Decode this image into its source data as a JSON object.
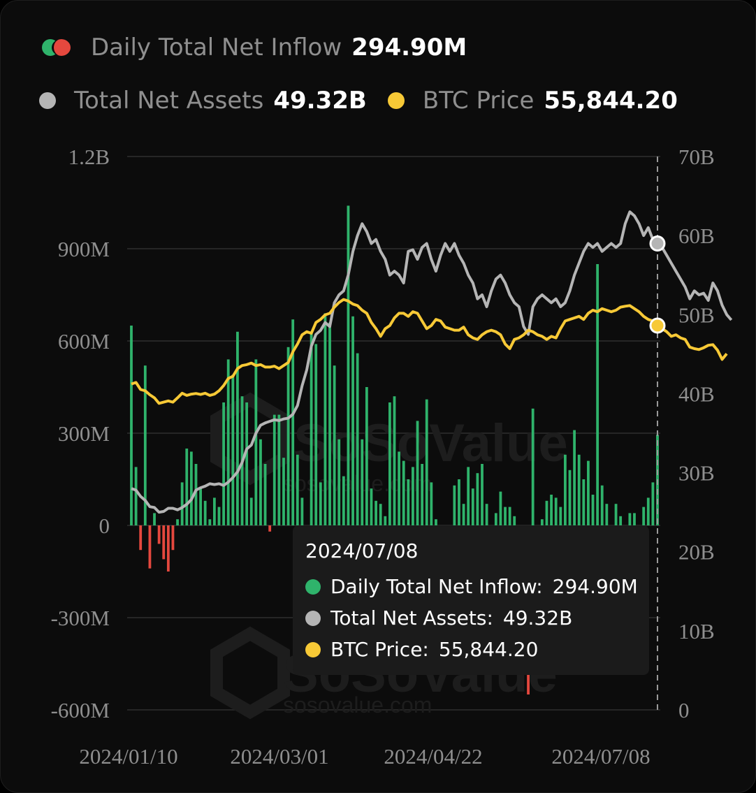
{
  "legend": {
    "inflow_label": "Daily Total Net Inflow",
    "inflow_value": "294.90M",
    "assets_label": "Total Net Assets",
    "assets_value": "49.32B",
    "btc_label": "BTC Price",
    "btc_value": "55,844.20"
  },
  "tooltip": {
    "date": "2024/07/08",
    "inflow_label": "Daily Total Net Inflow:",
    "inflow_value": "294.90M",
    "assets_label": "Total Net Assets:",
    "assets_value": "49.32B",
    "btc_label": "BTC Price:",
    "btc_value": "55,844.20"
  },
  "watermark": {
    "brand": "SoSoValue",
    "url": "sosovalue.com"
  },
  "colors": {
    "inflow_positive": "#2fb36b",
    "inflow_negative": "#e5483e",
    "net_assets": "#b5b5b5",
    "btc_price": "#f7c936",
    "grid": "#262626"
  },
  "chart_data": {
    "type": "bar",
    "title": "",
    "xlabel": "",
    "ylabel": "",
    "x_tick_labels": [
      "2024/01/10",
      "2024/03/01",
      "2024/04/22",
      "2024/07/08"
    ],
    "left_axis": {
      "ticks": [
        "1.2B",
        "900M",
        "600M",
        "300M",
        "0",
        "-300M",
        "-600M"
      ],
      "range": [
        -600000000,
        1200000000
      ]
    },
    "right_axis": {
      "ticks": [
        "70B",
        "60B",
        "50B",
        "40B",
        "30B",
        "20B",
        "10B",
        "0"
      ],
      "range": [
        0,
        70000000000
      ]
    },
    "series": [
      {
        "name": "Daily Total Net Inflow",
        "type": "bar",
        "unit": "M",
        "values": [
          650,
          190,
          -80,
          520,
          -140,
          40,
          -60,
          -110,
          -150,
          -80,
          20,
          140,
          250,
          240,
          200,
          120,
          80,
          20,
          90,
          60,
          400,
          540,
          490,
          630,
          420,
          400,
          90,
          540,
          280,
          200,
          -20,
          360,
          360,
          220,
          580,
          670,
          230,
          90,
          -130,
          630,
          590,
          140,
          690,
          660,
          520,
          280,
          160,
          1040,
          680,
          560,
          280,
          450,
          120,
          80,
          70,
          30,
          400,
          420,
          240,
          210,
          150,
          190,
          340,
          200,
          410,
          140,
          20,
          -170,
          -190,
          -140,
          130,
          150,
          70,
          190,
          120,
          170,
          200,
          70,
          -40,
          40,
          110,
          60,
          60,
          30,
          -110,
          -450,
          -550,
          380,
          -10,
          20,
          80,
          100,
          90,
          60,
          230,
          180,
          310,
          230,
          150,
          210,
          100,
          850,
          130,
          70,
          -30,
          70,
          30,
          -20,
          40,
          40,
          -20,
          60,
          90,
          140,
          295
        ]
      },
      {
        "name": "Total Net Assets",
        "type": "line",
        "unit": "B",
        "values": [
          28,
          27.8,
          27,
          26.5,
          25.7,
          25.6,
          25,
          25.1,
          25.5,
          25.5,
          25.3,
          25.6,
          26,
          26.6,
          27.8,
          28.1,
          28.3,
          28.6,
          28.5,
          28.6,
          28.4,
          28.8,
          29.4,
          30.1,
          31.3,
          33,
          33.5,
          35,
          36,
          36.3,
          36.5,
          36.7,
          36.6,
          36.8,
          36.9,
          37.4,
          38.5,
          41,
          43,
          46,
          47.5,
          48,
          49,
          48.5,
          51.5,
          52.5,
          53,
          55,
          58,
          60,
          61.5,
          60.5,
          59,
          59.5,
          58,
          57,
          55,
          55.5,
          55,
          54,
          58,
          58.2,
          57,
          58.5,
          59,
          57,
          55.5,
          57.5,
          59,
          58,
          59,
          57.5,
          56.5,
          55,
          54,
          52,
          52.5,
          51,
          53,
          54.5,
          55,
          54,
          52.5,
          51.5,
          51,
          48.5,
          47.5,
          51,
          52,
          52.5,
          52,
          51.5,
          52,
          51,
          51.5,
          53,
          55,
          56.5,
          58,
          59,
          58.5,
          59,
          58,
          58.5,
          59,
          58.5,
          59,
          61.5,
          63,
          62.5,
          61.5,
          60,
          61,
          59.5,
          59,
          58.5,
          57.5,
          56.5,
          55.5,
          54.5,
          53.5,
          52,
          53,
          52.5,
          52.7,
          51.8,
          54,
          53,
          51.2,
          50,
          49.32
        ]
      },
      {
        "name": "BTC Price",
        "type": "line",
        "unit": "USD",
        "values": [
          46000,
          46500,
          44200,
          43800,
          42500,
          41500,
          39700,
          40100,
          40500,
          40100,
          41500,
          43000,
          42300,
          42700,
          42900,
          42600,
          43000,
          42300,
          42700,
          43800,
          45500,
          47800,
          48500,
          51000,
          52000,
          52300,
          52800,
          52000,
          52300,
          51500,
          51500,
          51800,
          51000,
          52000,
          53000,
          56500,
          59000,
          62000,
          63000,
          62500,
          66000,
          67000,
          68500,
          69000,
          71000,
          72500,
          73500,
          73000,
          72000,
          71500,
          70000,
          69000,
          66000,
          64000,
          61500,
          64000,
          65000,
          67500,
          69000,
          69000,
          68000,
          69500,
          69000,
          66500,
          64000,
          65000,
          67000,
          66500,
          64500,
          64000,
          63500,
          63500,
          64500,
          62000,
          61000,
          60500,
          62000,
          63000,
          63500,
          63000,
          62000,
          59000,
          57500,
          60500,
          61000,
          62000,
          63500,
          63000,
          62000,
          61500,
          60500,
          61500,
          61000,
          64000,
          66500,
          67000,
          67500,
          68000,
          67000,
          69000,
          70000,
          69500,
          70500,
          70000,
          69500,
          70000,
          71000,
          71300,
          71500,
          70500,
          69500,
          68000,
          67000,
          66500,
          65000,
          64000,
          63000,
          61500,
          62000,
          61000,
          60500,
          58000,
          57500,
          57200,
          57800,
          58600,
          58800,
          57000,
          54000,
          55844.2
        ]
      }
    ]
  }
}
